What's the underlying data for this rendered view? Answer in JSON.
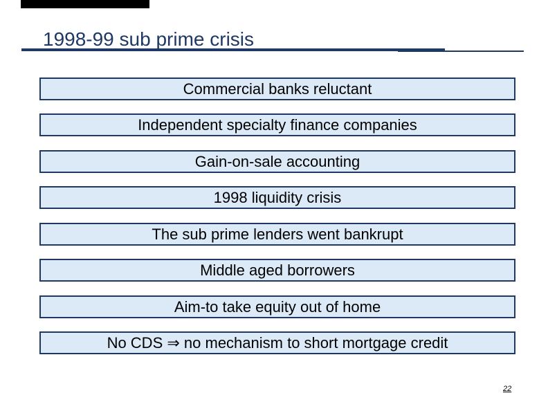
{
  "slide": {
    "title": "1998-99 sub prime crisis",
    "page_number": "22",
    "boxes": [
      "Commercial banks reluctant",
      "Independent specialty finance companies",
      "Gain-on-sale accounting",
      "1998 liquidity crisis",
      "The sub prime lenders went bankrupt",
      "Middle aged borrowers",
      "Aim-to take equity out of home",
      "No CDS ⇒ no mechanism to short mortgage credit"
    ],
    "colors": {
      "accent_navy": "#1F3864",
      "box_fill": "#DCEAF7",
      "box_border": "#1F3864",
      "body_text": "#000000",
      "top_bar": "#000000"
    }
  }
}
